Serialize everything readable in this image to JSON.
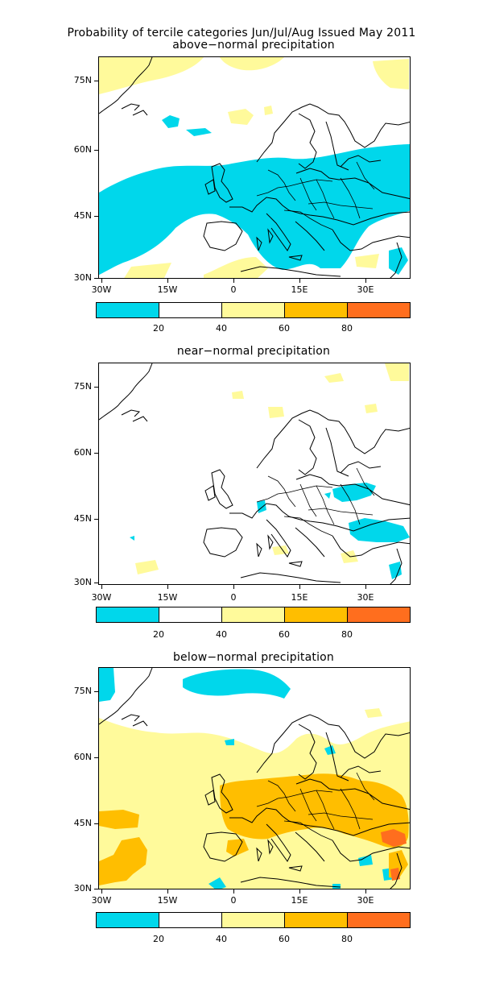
{
  "figure": {
    "title": "Probability of tercile categories Jun/Jul/Aug Issued May 2011"
  },
  "colors": {
    "band_0_20": "#00d7eb",
    "band_20_40": "#ffffff",
    "band_40_60": "#fffa9b",
    "band_60_80": "#ffbe00",
    "band_80_100": "#ff6e1e",
    "coastline": "#000000"
  },
  "axes": {
    "lat_labels": [
      "75N",
      "60N",
      "45N",
      "30N"
    ],
    "lon_labels": [
      "30W",
      "15W",
      "0",
      "15E",
      "30E"
    ]
  },
  "colorbar": {
    "labels": [
      "20",
      "40",
      "60",
      "80"
    ]
  },
  "panels": [
    {
      "title": "above−normal precipitation",
      "dominant_category": "below 40%"
    },
    {
      "title": "near−normal precipitation",
      "dominant_category": "mostly 20-40%"
    },
    {
      "title": "below−normal precipitation",
      "dominant_category": "40-60%, 60-80% over central Europe"
    }
  ]
}
